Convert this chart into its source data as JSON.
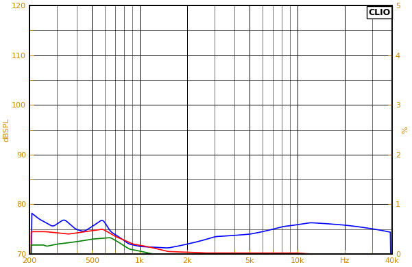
{
  "title": "CLIO",
  "ylabel_left": "dBSPL",
  "ylabel_right": "%",
  "xlabel": "Hz",
  "xlim": [
    200,
    40000
  ],
  "ylim_left": [
    70,
    120
  ],
  "ylim_right": [
    0,
    5
  ],
  "yticks_left": [
    70,
    80,
    90,
    100,
    110,
    120
  ],
  "yticks_right": [
    0,
    1,
    2,
    3,
    4,
    5
  ],
  "xtick_labels": [
    "200",
    "500",
    "1k",
    "2k",
    "5k",
    "10k",
    "Hz",
    "40k"
  ],
  "xtick_positions": [
    200,
    500,
    1000,
    2000,
    5000,
    10000,
    20000,
    40000
  ],
  "background_color": "#ffffff",
  "grid_color": "#000000",
  "blue_color": "#0000ff",
  "red_color": "#ff0000",
  "green_color": "#008000",
  "label_color": "#cc8800",
  "line_width": 1.2
}
